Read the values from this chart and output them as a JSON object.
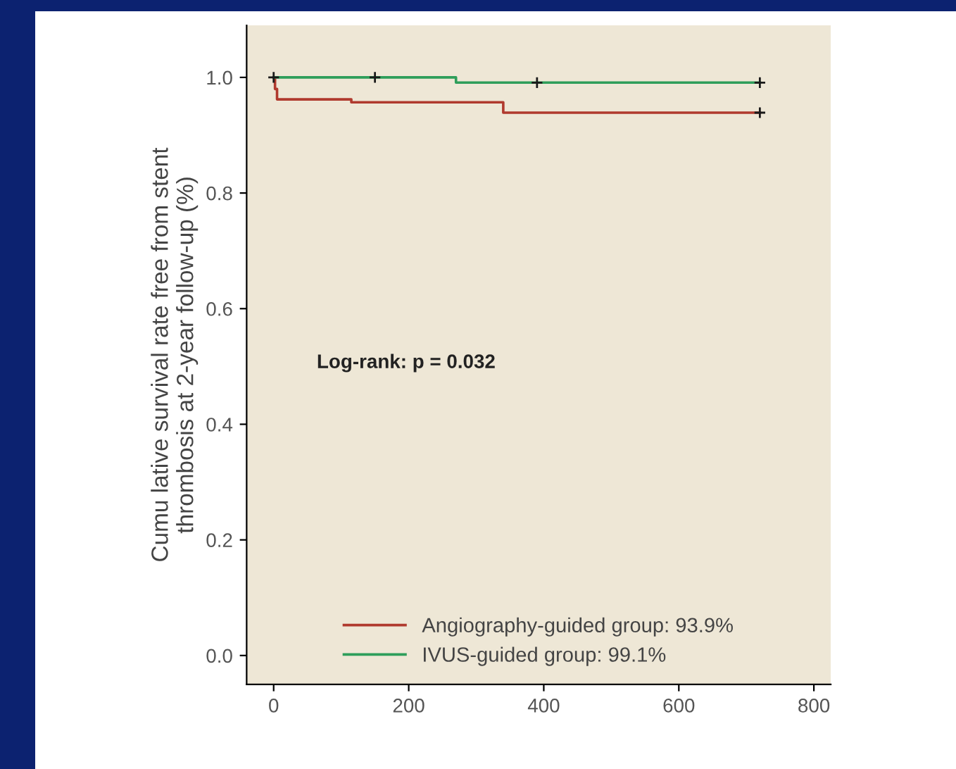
{
  "chart_data": {
    "type": "step",
    "ylabel": "Cumu lative survival rate free from stent\nthrombosis at 2-year follow-up (%)",
    "xlim": [
      -40,
      825
    ],
    "xticks": [
      0,
      200,
      400,
      600,
      800
    ],
    "ylim": [
      -0.05,
      1.09
    ],
    "yticks": [
      {
        "value": 0,
        "label": "0.0"
      },
      {
        "value": 0.2,
        "label": "0.2"
      },
      {
        "value": 0.4,
        "label": "0.4"
      },
      {
        "value": 0.6,
        "label": "0.6"
      },
      {
        "value": 0.8,
        "label": "0.8"
      },
      {
        "value": 1,
        "label": "1.0"
      }
    ],
    "series": [
      {
        "name": "Angiography-guided group: 93.9%",
        "color": "#b03a2e",
        "x": [
          0,
          2,
          5,
          115,
          340,
          720
        ],
        "values": [
          1.0,
          0.98,
          0.962,
          0.957,
          0.939,
          0.939
        ]
      },
      {
        "name": "IVUS-guided group: 99.1%",
        "color": "#2e9e5a",
        "x": [
          0,
          270,
          720
        ],
        "values": [
          1.0,
          0.991,
          0.991
        ]
      },
      {
        "type": "scatter",
        "marker": "cross",
        "color": "#1a1a1a",
        "x": [
          0,
          150,
          390,
          720
        ],
        "values": [
          1.0,
          1.0,
          0.991,
          0.991
        ]
      },
      {
        "type": "scatter",
        "marker": "cross",
        "color": "#1a1a1a",
        "x": [
          720
        ],
        "values": [
          0.939
        ]
      }
    ],
    "annotations": [
      "Log-rank: p = 0.032"
    ],
    "legend": "bottom",
    "grid": false
  }
}
